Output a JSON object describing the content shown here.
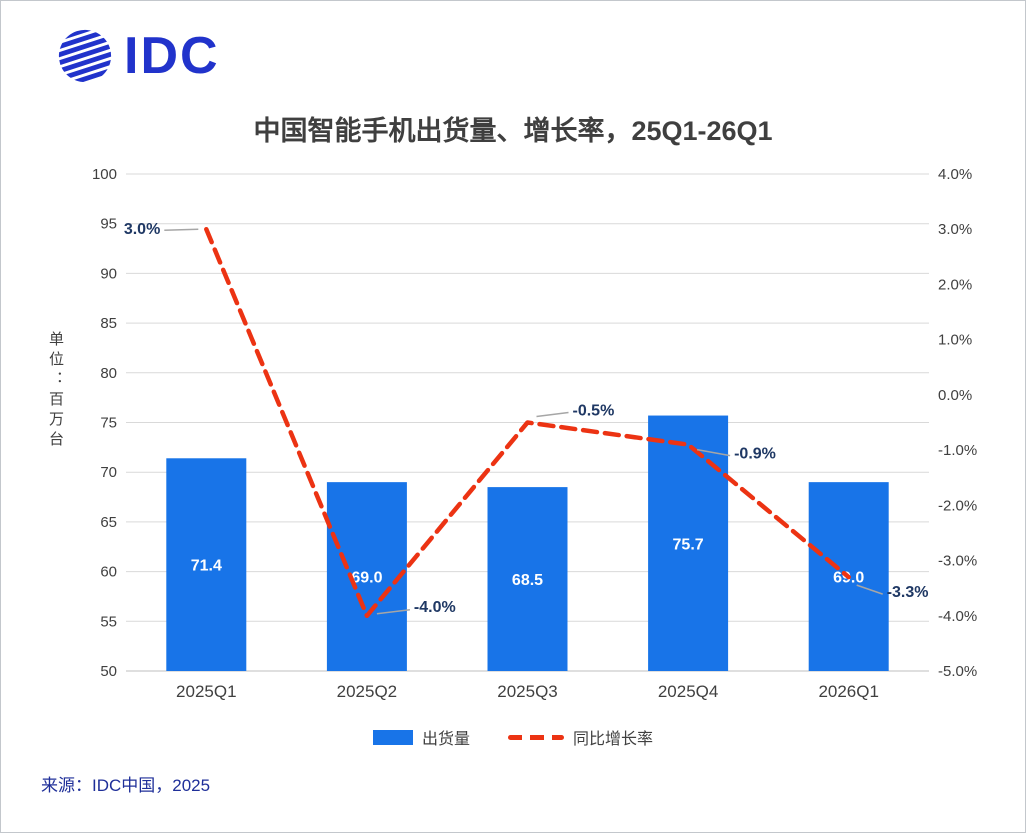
{
  "page": {
    "logo_text": "IDC",
    "title": "中国智能手机出货量、增长率，25Q1-26Q1",
    "source": "来源：IDC中国，2025"
  },
  "legend": {
    "bars_label": "出货量",
    "line_label": "同比增长率"
  },
  "chart_data": {
    "type": "bar+line combo",
    "title": "中国智能手机出货量、增长率，25Q1-26Q1",
    "categories": [
      "2025Q1",
      "2025Q2",
      "2025Q3",
      "2025Q4",
      "2026Q1"
    ],
    "series": [
      {
        "name": "出货量",
        "type": "bar",
        "axis": "left",
        "values": [
          71.4,
          69.0,
          68.5,
          75.7,
          69.0
        ],
        "color": "#1874e8"
      },
      {
        "name": "同比增长率",
        "type": "line",
        "axis": "right",
        "values": [
          3.0,
          -4.0,
          -0.5,
          -0.9,
          -3.3
        ],
        "unit": "%",
        "color": "#ec3313",
        "style": "dashed"
      }
    ],
    "bar_labels": [
      "71.4",
      "69.0",
      "68.5",
      "75.7",
      "69.0"
    ],
    "line_labels": [
      "3.0%",
      "-4.0%",
      "-0.5%",
      "-0.9%",
      "-3.3%"
    ],
    "left_axis": {
      "title": "单位：百万台",
      "min": 50,
      "max": 100,
      "step": 5
    },
    "right_axis": {
      "min": -5.0,
      "max": 4.0,
      "step": 1.0,
      "suffix": "%"
    },
    "grid": true,
    "legend_position": "bottom",
    "label_color": "#1f3864",
    "axis_text_color": "#404040"
  }
}
